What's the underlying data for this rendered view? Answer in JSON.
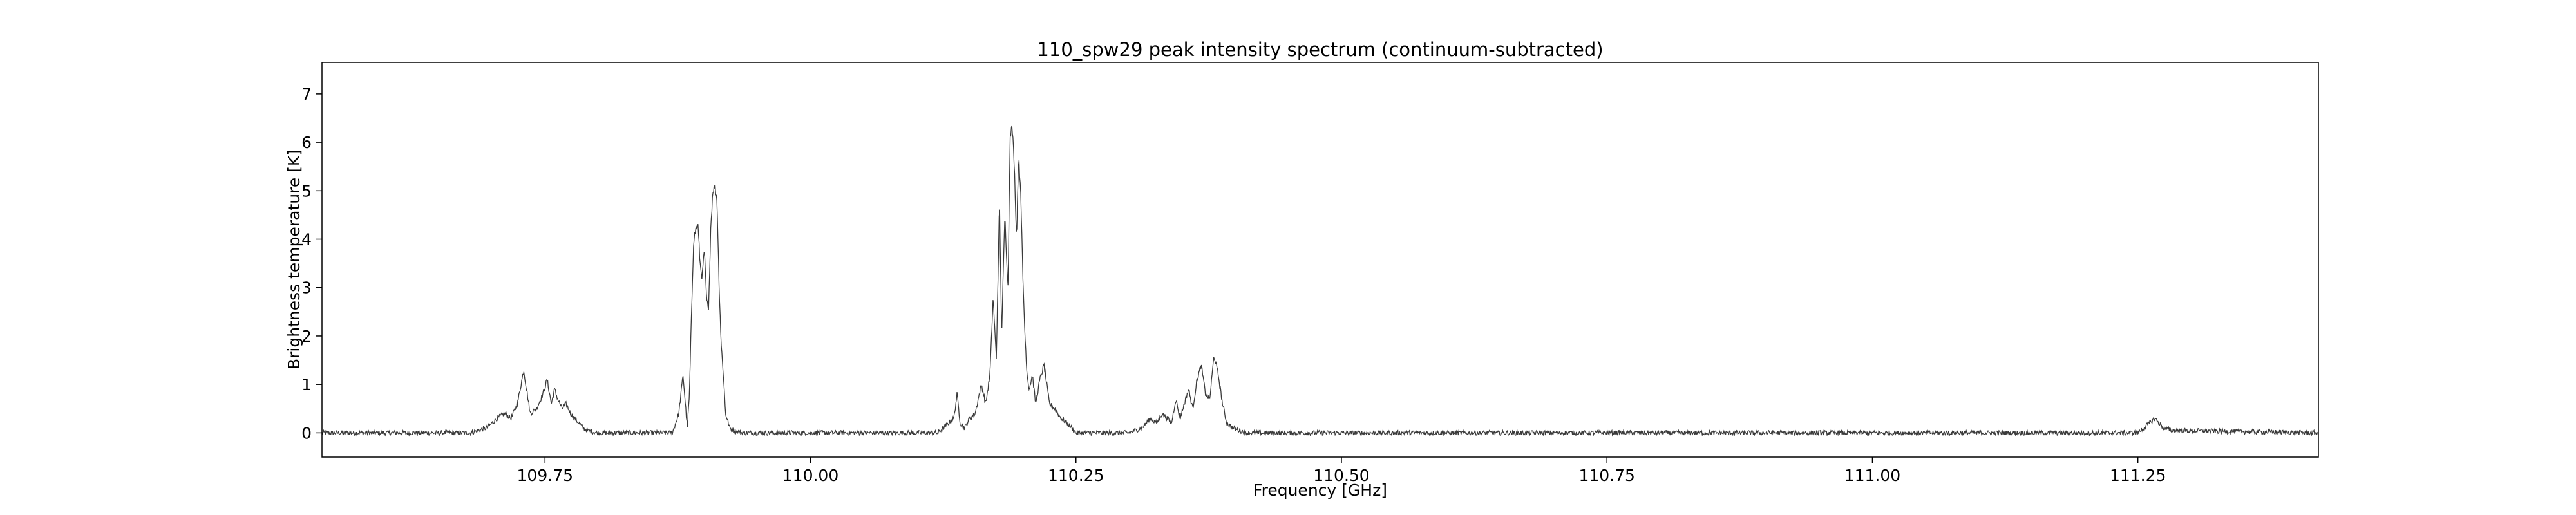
{
  "chart_data": {
    "type": "line",
    "title": "110_spw29 peak intensity spectrum (continuum-subtracted)",
    "xlabel": "Frequency [GHz]",
    "ylabel": "Brightness temperature [K]",
    "xlim": [
      109.54,
      111.42
    ],
    "ylim": [
      -0.5,
      7.65
    ],
    "grid": false,
    "legend": "none",
    "line_color": "#3a3a3a",
    "x_ticks": [
      109.75,
      110.0,
      110.25,
      110.5,
      110.75,
      111.0,
      111.25
    ],
    "x_tick_labels": [
      "109.75",
      "110.00",
      "110.25",
      "110.50",
      "110.75",
      "111.00",
      "111.25"
    ],
    "y_ticks": [
      0,
      1,
      2,
      3,
      4,
      5,
      6,
      7
    ],
    "y_tick_labels": [
      "0",
      "1",
      "2",
      "3",
      "4",
      "5",
      "6",
      "7"
    ],
    "baseline_noise_rms": 0.05,
    "x": [
      109.54,
      109.68,
      109.695,
      109.705,
      109.712,
      109.718,
      109.724,
      109.73,
      109.736,
      109.742,
      109.748,
      109.752,
      109.756,
      109.759,
      109.762,
      109.766,
      109.77,
      109.774,
      109.778,
      109.782,
      109.786,
      109.79,
      109.795,
      109.8,
      109.81,
      109.87,
      109.876,
      109.88,
      109.884,
      109.886,
      109.888,
      109.89,
      109.892,
      109.894,
      109.896,
      109.898,
      109.9,
      109.902,
      109.904,
      109.906,
      109.908,
      109.91,
      109.912,
      109.914,
      109.916,
      109.918,
      109.92,
      109.924,
      109.928,
      109.935,
      110.12,
      110.135,
      110.138,
      110.141,
      110.145,
      110.15,
      110.155,
      110.158,
      110.161,
      110.165,
      110.169,
      110.172,
      110.175,
      110.178,
      110.18,
      110.183,
      110.186,
      110.188,
      110.19,
      110.192,
      110.194,
      110.196,
      110.198,
      110.2,
      110.202,
      110.204,
      110.206,
      110.209,
      110.212,
      110.216,
      110.22,
      110.225,
      110.23,
      110.236,
      110.242,
      110.25,
      110.3,
      110.312,
      110.32,
      110.326,
      110.331,
      110.336,
      110.34,
      110.344,
      110.348,
      110.352,
      110.356,
      110.36,
      110.364,
      110.368,
      110.372,
      110.376,
      110.38,
      110.384,
      110.388,
      110.392,
      110.398,
      110.41,
      111.25,
      111.258,
      111.266,
      111.274,
      111.282,
      111.42
    ],
    "y": [
      0.0,
      0.0,
      0.1,
      0.3,
      0.4,
      0.3,
      0.6,
      1.3,
      0.4,
      0.5,
      0.8,
      1.1,
      0.6,
      0.9,
      0.7,
      0.5,
      0.6,
      0.4,
      0.3,
      0.2,
      0.1,
      0.05,
      0.02,
      0.0,
      0.0,
      0.0,
      0.4,
      1.2,
      0.1,
      0.8,
      2.5,
      4.0,
      4.2,
      4.3,
      3.5,
      3.2,
      3.8,
      2.8,
      2.5,
      4.2,
      5.0,
      5.1,
      4.8,
      3.0,
      1.8,
      1.2,
      0.4,
      0.1,
      0.05,
      0.0,
      0.0,
      0.3,
      0.8,
      0.2,
      0.1,
      0.3,
      0.4,
      0.7,
      1.0,
      0.6,
      1.2,
      2.8,
      1.5,
      4.8,
      2.0,
      4.5,
      3.0,
      6.2,
      6.3,
      5.5,
      4.0,
      5.7,
      5.0,
      3.2,
      2.0,
      1.2,
      0.9,
      1.2,
      0.6,
      1.1,
      1.4,
      0.6,
      0.5,
      0.3,
      0.2,
      0.0,
      0.0,
      0.1,
      0.3,
      0.2,
      0.4,
      0.3,
      0.2,
      0.7,
      0.3,
      0.6,
      0.9,
      0.5,
      1.1,
      1.4,
      0.8,
      0.7,
      1.6,
      1.2,
      0.6,
      0.2,
      0.1,
      0.0,
      0.0,
      0.15,
      0.3,
      0.1,
      0.05,
      0.0
    ]
  }
}
